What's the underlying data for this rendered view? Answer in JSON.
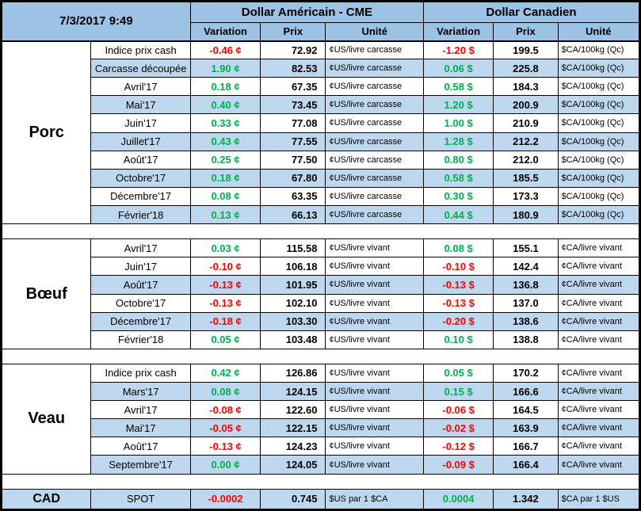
{
  "header": {
    "timestamp": "7/3/2017 9:49",
    "us_title": "Dollar Américain - CME",
    "ca_title": "Dollar Canadien",
    "col_variation": "Variation",
    "col_prix": "Prix",
    "col_unite": "Unité"
  },
  "colors": {
    "header_blue": "#9CC2E5",
    "band_blue": "#BDD7EE",
    "positive": "#00B050",
    "negative": "#FF0000",
    "border": "#000000"
  },
  "sections": [
    {
      "name": "Porc",
      "rows": [
        {
          "label": "Indice prix cash",
          "band": false,
          "us_var": "-0.46 ¢",
          "us_dir": "neg",
          "us_prix": "72.92",
          "us_unite": "¢US/livre carcasse",
          "ca_var": "-1.20 $",
          "ca_dir": "neg",
          "ca_prix": "199.5",
          "ca_unite": "$CA/100kg (Qc)"
        },
        {
          "label": "Carcasse découpée",
          "band": true,
          "us_var": "1.90 ¢",
          "us_dir": "pos",
          "us_prix": "82.53",
          "us_unite": "¢US/livre carcasse",
          "ca_var": "0.06 $",
          "ca_dir": "pos",
          "ca_prix": "225.8",
          "ca_unite": "$CA/100kg (Qc)"
        },
        {
          "label": "Avril'17",
          "band": false,
          "us_var": "0.18 ¢",
          "us_dir": "pos",
          "us_prix": "67.35",
          "us_unite": "¢US/livre carcasse",
          "ca_var": "0.58 $",
          "ca_dir": "pos",
          "ca_prix": "184.3",
          "ca_unite": "$CA/100kg (Qc)"
        },
        {
          "label": "Mai'17",
          "band": true,
          "us_var": "0.40 ¢",
          "us_dir": "pos",
          "us_prix": "73.45",
          "us_unite": "¢US/livre carcasse",
          "ca_var": "1.20 $",
          "ca_dir": "pos",
          "ca_prix": "200.9",
          "ca_unite": "$CA/100kg (Qc)"
        },
        {
          "label": "Juin'17",
          "band": false,
          "us_var": "0.33 ¢",
          "us_dir": "pos",
          "us_prix": "77.08",
          "us_unite": "¢US/livre carcasse",
          "ca_var": "1.00 $",
          "ca_dir": "pos",
          "ca_prix": "210.9",
          "ca_unite": "$CA/100kg (Qc)"
        },
        {
          "label": "Juillet'17",
          "band": true,
          "us_var": "0.43 ¢",
          "us_dir": "pos",
          "us_prix": "77.55",
          "us_unite": "¢US/livre carcasse",
          "ca_var": "1.28 $",
          "ca_dir": "pos",
          "ca_prix": "212.2",
          "ca_unite": "$CA/100kg (Qc)"
        },
        {
          "label": "Août'17",
          "band": false,
          "us_var": "0.25 ¢",
          "us_dir": "pos",
          "us_prix": "77.50",
          "us_unite": "¢US/livre carcasse",
          "ca_var": "0.80 $",
          "ca_dir": "pos",
          "ca_prix": "212.0",
          "ca_unite": "$CA/100kg (Qc)"
        },
        {
          "label": "Octobre'17",
          "band": true,
          "us_var": "0.18 ¢",
          "us_dir": "pos",
          "us_prix": "67.80",
          "us_unite": "¢US/livre carcasse",
          "ca_var": "0.58 $",
          "ca_dir": "pos",
          "ca_prix": "185.5",
          "ca_unite": "$CA/100kg (Qc)"
        },
        {
          "label": "Décembre'17",
          "band": false,
          "us_var": "0.08 ¢",
          "us_dir": "pos",
          "us_prix": "63.35",
          "us_unite": "¢US/livre carcasse",
          "ca_var": "0.30 $",
          "ca_dir": "pos",
          "ca_prix": "173.3",
          "ca_unite": "$CA/100kg (Qc)"
        },
        {
          "label": "Février'18",
          "band": true,
          "us_var": "0.13 ¢",
          "us_dir": "pos",
          "us_prix": "66.13",
          "us_unite": "¢US/livre carcasse",
          "ca_var": "0.44 $",
          "ca_dir": "pos",
          "ca_prix": "180.9",
          "ca_unite": "$CA/100kg (Qc)"
        }
      ]
    },
    {
      "name": "Bœuf",
      "rows": [
        {
          "label": "Avril'17",
          "band": false,
          "us_var": "0.03 ¢",
          "us_dir": "pos",
          "us_prix": "115.58",
          "us_unite": "¢US/livre vivant",
          "ca_var": "0.08 $",
          "ca_dir": "pos",
          "ca_prix": "155.1",
          "ca_unite": "¢CA/livre vivant"
        },
        {
          "label": "Juin'17",
          "band": false,
          "us_var": "-0.10 ¢",
          "us_dir": "neg",
          "us_prix": "106.18",
          "us_unite": "¢US/livre vivant",
          "ca_var": "-0.10 $",
          "ca_dir": "neg",
          "ca_prix": "142.4",
          "ca_unite": "¢CA/livre vivant"
        },
        {
          "label": "Août'17",
          "band": true,
          "us_var": "-0.13 ¢",
          "us_dir": "neg",
          "us_prix": "101.95",
          "us_unite": "¢US/livre vivant",
          "ca_var": "-0.13 $",
          "ca_dir": "neg",
          "ca_prix": "136.8",
          "ca_unite": "¢CA/livre vivant"
        },
        {
          "label": "Octobre'17",
          "band": false,
          "us_var": "-0.13 ¢",
          "us_dir": "neg",
          "us_prix": "102.10",
          "us_unite": "¢US/livre vivant",
          "ca_var": "-0.13 $",
          "ca_dir": "neg",
          "ca_prix": "137.0",
          "ca_unite": "¢CA/livre vivant"
        },
        {
          "label": "Décembre'17",
          "band": true,
          "us_var": "-0.18 ¢",
          "us_dir": "neg",
          "us_prix": "103.30",
          "us_unite": "¢US/livre vivant",
          "ca_var": "-0.20 $",
          "ca_dir": "neg",
          "ca_prix": "138.6",
          "ca_unite": "¢CA/livre vivant"
        },
        {
          "label": "Février'18",
          "band": false,
          "us_var": "0.05 ¢",
          "us_dir": "pos",
          "us_prix": "103.48",
          "us_unite": "¢US/livre vivant",
          "ca_var": "0.10 $",
          "ca_dir": "pos",
          "ca_prix": "138.8",
          "ca_unite": "¢CA/livre vivant"
        }
      ]
    },
    {
      "name": "Veau",
      "rows": [
        {
          "label": "Indice prix cash",
          "band": false,
          "us_var": "0.42 ¢",
          "us_dir": "pos",
          "us_prix": "126.86",
          "us_unite": "¢US/livre vivant",
          "ca_var": "0.05 $",
          "ca_dir": "pos",
          "ca_prix": "170.2",
          "ca_unite": "¢CA/livre vivant"
        },
        {
          "label": "Mars'17",
          "band": true,
          "us_var": "0.08 ¢",
          "us_dir": "pos",
          "us_prix": "124.15",
          "us_unite": "¢US/livre vivant",
          "ca_var": "0.15 $",
          "ca_dir": "pos",
          "ca_prix": "166.6",
          "ca_unite": "¢CA/livre vivant"
        },
        {
          "label": "Avril'17",
          "band": false,
          "us_var": "-0.08 ¢",
          "us_dir": "neg",
          "us_prix": "122.60",
          "us_unite": "¢US/livre vivant",
          "ca_var": "-0.06 $",
          "ca_dir": "neg",
          "ca_prix": "164.5",
          "ca_unite": "¢CA/livre vivant"
        },
        {
          "label": "Mai'17",
          "band": true,
          "us_var": "-0.05 ¢",
          "us_dir": "neg",
          "us_prix": "122.15",
          "us_unite": "¢US/livre vivant",
          "ca_var": "-0.02 $",
          "ca_dir": "neg",
          "ca_prix": "163.9",
          "ca_unite": "¢CA/livre vivant"
        },
        {
          "label": "Août'17",
          "band": false,
          "us_var": "-0.13 ¢",
          "us_dir": "neg",
          "us_prix": "124.23",
          "us_unite": "¢US/livre vivant",
          "ca_var": "-0.12 $",
          "ca_dir": "neg",
          "ca_prix": "166.7",
          "ca_unite": "¢CA/livre vivant"
        },
        {
          "label": "Septembre'17",
          "band": true,
          "us_var": "0.00 ¢",
          "us_dir": "pos",
          "us_prix": "124.05",
          "us_unite": "¢US/livre vivant",
          "ca_var": "-0.09 $",
          "ca_dir": "neg",
          "ca_prix": "166.4",
          "ca_unite": "¢CA/livre vivant"
        }
      ]
    },
    {
      "name": "CAD",
      "rows": [
        {
          "label": "SPOT",
          "band": true,
          "us_var": "-0.0002",
          "us_dir": "neg",
          "us_prix": "0.745",
          "us_unite": "$US par 1 $CA",
          "ca_var": "0.0004",
          "ca_dir": "pos",
          "ca_prix": "1.342",
          "ca_unite": "$CA par 1 $US"
        }
      ]
    }
  ]
}
